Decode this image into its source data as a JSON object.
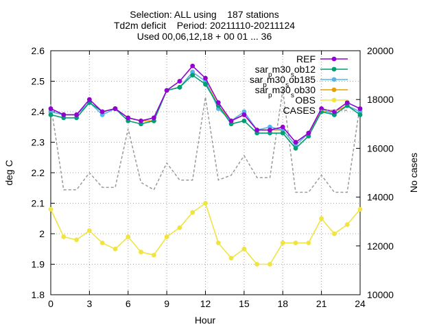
{
  "chart_data": {
    "type": "line",
    "title_lines": [
      "Selection: ALL using    187 stations",
      "Td2m deficit    Period: 20211110-20211124",
      "Used 00,06,12,18 + 00 01 ... 36"
    ],
    "xlabel": "Hour",
    "ylabel": "deg C",
    "y2label": "No cases",
    "xlim": [
      0,
      24
    ],
    "ylim": [
      1.8,
      2.6
    ],
    "y2lim": [
      10000,
      20000
    ],
    "xticks": [
      0,
      3,
      6,
      9,
      12,
      15,
      18,
      21,
      24
    ],
    "yticks": [
      1.8,
      1.9,
      2,
      2.1,
      2.2,
      2.3,
      2.4,
      2.5,
      2.6
    ],
    "y2ticks": [
      10000,
      12000,
      14000,
      16000,
      18000,
      20000
    ],
    "grid": true,
    "legend_position": "top-right",
    "x": [
      0,
      1,
      2,
      3,
      4,
      5,
      6,
      7,
      8,
      9,
      10,
      11,
      12,
      13,
      14,
      15,
      16,
      17,
      18,
      19,
      20,
      21,
      22,
      23,
      24
    ],
    "series": [
      {
        "name": "REF",
        "legend_parts": [
          [
            "REF",
            ""
          ]
        ],
        "color": "#9400d3",
        "marker": "circle",
        "values": [
          2.41,
          2.39,
          2.39,
          2.44,
          2.4,
          2.41,
          2.38,
          2.37,
          2.38,
          2.47,
          2.5,
          2.55,
          2.51,
          2.43,
          2.37,
          2.39,
          2.34,
          2.34,
          2.35,
          2.3,
          2.33,
          2.41,
          2.4,
          2.43,
          2.41
        ]
      },
      {
        "name": "sar_pm30_sob12",
        "legend_parts": [
          [
            "sar",
            ""
          ],
          [
            "p",
            "sub"
          ],
          [
            "m30",
            ""
          ],
          [
            "s",
            "sub"
          ],
          [
            "ob12",
            ""
          ]
        ],
        "color": "#009e73",
        "marker": "circle",
        "values": [
          2.39,
          2.38,
          2.38,
          2.43,
          2.4,
          2.41,
          2.37,
          2.36,
          2.37,
          2.47,
          2.48,
          2.52,
          2.49,
          2.42,
          2.36,
          2.37,
          2.33,
          2.33,
          2.33,
          2.28,
          2.32,
          2.4,
          2.39,
          2.42,
          2.39
        ]
      },
      {
        "name": "sar_pm30_sob185",
        "legend_parts": [
          [
            "sar",
            ""
          ],
          [
            "p",
            "sub"
          ],
          [
            "m30",
            ""
          ],
          [
            "s",
            "sub"
          ],
          [
            "ob185",
            ""
          ]
        ],
        "color": "#56b4e9",
        "marker": "circle",
        "values": [
          2.4,
          2.39,
          2.39,
          2.43,
          2.39,
          2.41,
          2.38,
          2.37,
          2.38,
          2.47,
          2.48,
          2.53,
          2.5,
          2.41,
          2.37,
          2.4,
          2.34,
          2.35,
          2.34,
          2.29,
          2.33,
          2.41,
          2.39,
          2.42,
          2.4
        ]
      },
      {
        "name": "sar_pm30_sob30",
        "legend_parts": [
          [
            "sar",
            ""
          ],
          [
            "p",
            "sub"
          ],
          [
            "m30",
            ""
          ],
          [
            "s",
            "sub"
          ],
          [
            "ob30",
            ""
          ]
        ],
        "color": "#e69f00",
        "marker": "circle",
        "values": [
          2.4,
          2.39,
          2.39,
          2.43,
          2.4,
          2.41,
          2.38,
          2.37,
          2.37,
          2.47,
          2.48,
          2.53,
          2.5,
          2.42,
          2.37,
          2.39,
          2.34,
          2.34,
          2.34,
          2.29,
          2.33,
          2.4,
          2.4,
          2.42,
          2.4
        ]
      },
      {
        "name": "OBS",
        "legend_parts": [
          [
            "OBS",
            ""
          ]
        ],
        "color": "#f0e442",
        "marker": "circle",
        "values": [
          2.08,
          1.99,
          1.98,
          2.01,
          1.97,
          1.95,
          1.99,
          1.94,
          1.93,
          1.99,
          2.02,
          2.07,
          2.1,
          1.97,
          1.92,
          1.95,
          1.9,
          1.9,
          1.97,
          1.97,
          1.97,
          2.05,
          2.0,
          2.03,
          2.08
        ]
      },
      {
        "name": "CASES",
        "legend_parts": [
          [
            "CASES",
            ""
          ]
        ],
        "color": "#999999",
        "dashed": true,
        "marker": "none",
        "axis": "y2",
        "values": [
          17800,
          14300,
          14300,
          15000,
          14400,
          14400,
          16800,
          14600,
          14300,
          15400,
          14700,
          14700,
          18100,
          14700,
          14900,
          15700,
          14800,
          14800,
          18400,
          14200,
          14200,
          14900,
          14200,
          14200,
          17800
        ]
      }
    ]
  }
}
